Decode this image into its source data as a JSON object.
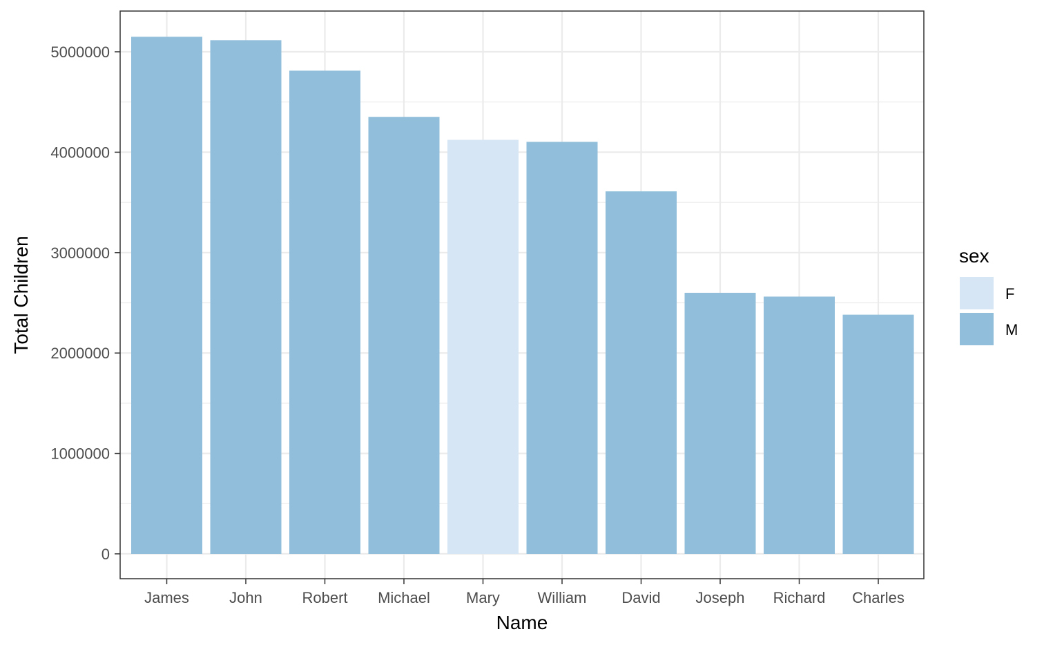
{
  "chart_data": {
    "type": "bar",
    "xlabel": "Name",
    "ylabel": "Total Children",
    "ylim": [
      0,
      5300000
    ],
    "y_ticks": [
      0,
      1000000,
      2000000,
      3000000,
      4000000,
      5000000
    ],
    "y_tick_labels": [
      "0",
      "1000000",
      "2000000",
      "3000000",
      "4000000",
      "5000000"
    ],
    "categories": [
      "James",
      "John",
      "Robert",
      "Michael",
      "Mary",
      "William",
      "David",
      "Joseph",
      "Richard",
      "Charles"
    ],
    "values": [
      5150000,
      5115000,
      4812000,
      4352000,
      4123000,
      4103000,
      3610000,
      2600000,
      2562000,
      2382000
    ],
    "fill_group": [
      "M",
      "M",
      "M",
      "M",
      "F",
      "M",
      "M",
      "M",
      "M",
      "M"
    ],
    "grid": true,
    "legend": {
      "title": "sex",
      "position": "right",
      "entries": [
        {
          "label": "F",
          "color": "#d6e6f4"
        },
        {
          "label": "M",
          "color": "#91bfdb"
        }
      ]
    }
  }
}
